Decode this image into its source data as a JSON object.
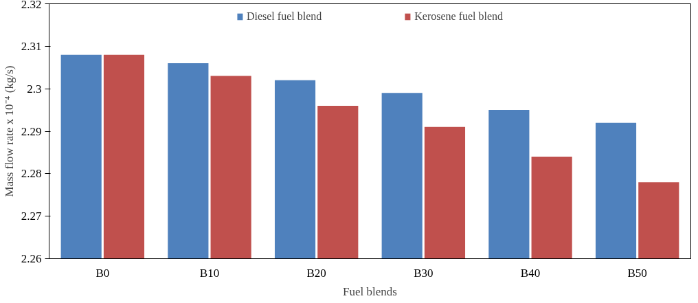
{
  "chart_data": {
    "type": "bar",
    "xlabel": "Fuel blends",
    "ylabel": "Mass flow rate x 10⁻⁴ (kg/s)",
    "categories": [
      "B0",
      "B10",
      "B20",
      "B30",
      "B40",
      "B50"
    ],
    "series": [
      {
        "name": "Diesel fuel blend",
        "color": "#4f81bd",
        "values": [
          2.308,
          2.306,
          2.302,
          2.299,
          2.295,
          2.292
        ]
      },
      {
        "name": "Kerosene fuel blend",
        "color": "#c0504d",
        "values": [
          2.308,
          2.303,
          2.296,
          2.291,
          2.284,
          2.278
        ]
      }
    ],
    "ylim": [
      2.26,
      2.32
    ],
    "yticks": [
      2.26,
      2.27,
      2.28,
      2.29,
      {
        "value": 2.3,
        "label": "2.3"
      },
      2.31,
      2.32
    ],
    "grid": false,
    "legend": "top"
  }
}
